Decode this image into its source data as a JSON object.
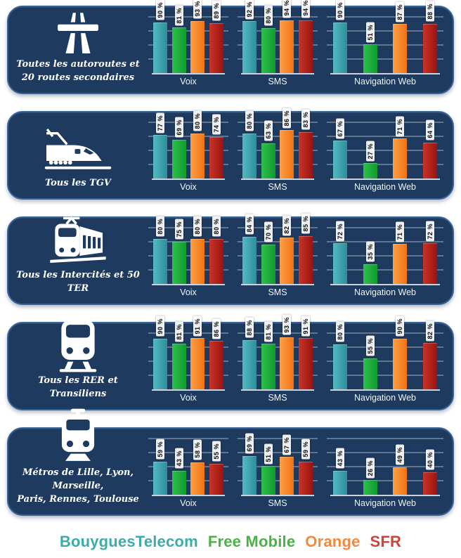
{
  "legend": {
    "items": [
      {
        "label": "BouyguesTelecom",
        "color": "#3BACA9",
        "bar_light": "#53BAC2",
        "bar_dark": "#2E8D98"
      },
      {
        "label": "Free Mobile",
        "color": "#47B347",
        "bar_light": "#2EC14B",
        "bar_dark": "#109A2F"
      },
      {
        "label": "Orange",
        "color": "#F6883B",
        "bar_light": "#FBA14A",
        "bar_dark": "#F07210"
      },
      {
        "label": "SFR",
        "color": "#CE423C",
        "bar_light": "#C93327",
        "bar_dark": "#991410"
      }
    ]
  },
  "unit": "%",
  "rows": [
    {
      "key": "autoroutes",
      "icon": "motorway-icon",
      "caption": "Toutes les autoroutes et\n20 routes secondaires"
    },
    {
      "key": "tgv",
      "icon": "tgv-train-icon",
      "caption": "Tous les TGV"
    },
    {
      "key": "intercites",
      "icon": "intercity-train-icon",
      "caption": "Tous les Intercités et 50 TER"
    },
    {
      "key": "rer",
      "icon": "rer-train-icon",
      "caption": "Tous les RER et Transiliens"
    },
    {
      "key": "metros",
      "icon": "metro-icon",
      "caption": "Métros de Lille, Lyon, Marseille,\nParis, Rennes, Toulouse"
    }
  ],
  "chart_data": [
    {
      "type": "bar",
      "title": "Toutes les autoroutes et 20 routes secondaires",
      "categories": [
        "Voix",
        "SMS",
        "Navigation Web"
      ],
      "series": [
        {
          "name": "BouyguesTelecom",
          "values": [
            90,
            92,
            90
          ]
        },
        {
          "name": "Free Mobile",
          "values": [
            81,
            80,
            51
          ]
        },
        {
          "name": "Orange",
          "values": [
            93,
            94,
            87
          ]
        },
        {
          "name": "SFR",
          "values": [
            89,
            94,
            88
          ]
        }
      ],
      "ylim": [
        0,
        100
      ],
      "grid": true,
      "unit": "%"
    },
    {
      "type": "bar",
      "title": "Tous les TGV",
      "categories": [
        "Voix",
        "SMS",
        "Navigation Web"
      ],
      "series": [
        {
          "name": "BouyguesTelecom",
          "values": [
            77,
            80,
            67
          ]
        },
        {
          "name": "Free Mobile",
          "values": [
            69,
            63,
            27
          ]
        },
        {
          "name": "Orange",
          "values": [
            80,
            86,
            71
          ]
        },
        {
          "name": "SFR",
          "values": [
            74,
            83,
            64
          ]
        }
      ],
      "ylim": [
        0,
        100
      ],
      "grid": true,
      "unit": "%"
    },
    {
      "type": "bar",
      "title": "Tous les Intercités et 50 TER",
      "categories": [
        "Voix",
        "SMS",
        "Navigation Web"
      ],
      "series": [
        {
          "name": "BouyguesTelecom",
          "values": [
            80,
            84,
            72
          ]
        },
        {
          "name": "Free Mobile",
          "values": [
            75,
            70,
            35
          ]
        },
        {
          "name": "Orange",
          "values": [
            80,
            82,
            71
          ]
        },
        {
          "name": "SFR",
          "values": [
            80,
            85,
            72
          ]
        }
      ],
      "ylim": [
        0,
        100
      ],
      "grid": true,
      "unit": "%"
    },
    {
      "type": "bar",
      "title": "Tous les RER et Transiliens",
      "categories": [
        "Voix",
        "SMS",
        "Navigation Web"
      ],
      "series": [
        {
          "name": "BouyguesTelecom",
          "values": [
            90,
            88,
            80
          ]
        },
        {
          "name": "Free Mobile",
          "values": [
            81,
            81,
            55
          ]
        },
        {
          "name": "Orange",
          "values": [
            91,
            93,
            90
          ]
        },
        {
          "name": "SFR",
          "values": [
            86,
            91,
            82
          ]
        }
      ],
      "ylim": [
        0,
        100
      ],
      "grid": true,
      "unit": "%"
    },
    {
      "type": "bar",
      "title": "Métros de Lille, Lyon, Marseille, Paris, Rennes, Toulouse",
      "categories": [
        "Voix",
        "SMS",
        "Navigation Web"
      ],
      "series": [
        {
          "name": "BouyguesTelecom",
          "values": [
            59,
            69,
            43
          ]
        },
        {
          "name": "Free Mobile",
          "values": [
            43,
            51,
            26
          ]
        },
        {
          "name": "Orange",
          "values": [
            58,
            67,
            49
          ]
        },
        {
          "name": "SFR",
          "values": [
            55,
            59,
            40
          ]
        }
      ],
      "ylim": [
        0,
        100
      ],
      "grid": true,
      "unit": "%"
    }
  ]
}
